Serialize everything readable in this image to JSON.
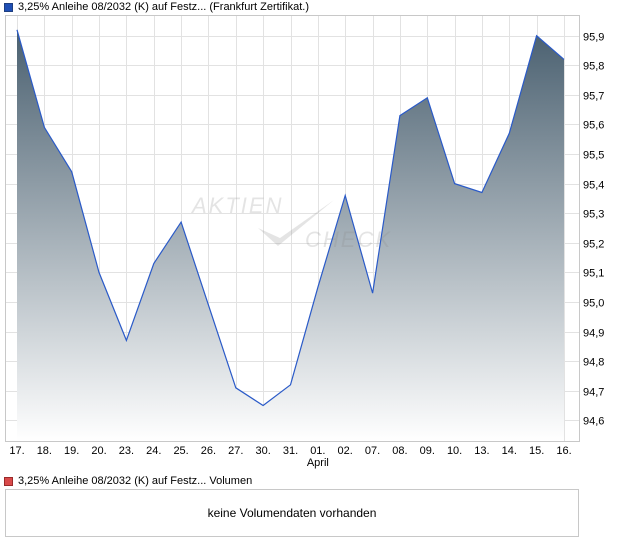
{
  "chart_data": {
    "type": "area",
    "title": "3,25% Anleihe 08/2032 (K) auf Festz... (Frankfurt Zertifikat.)",
    "x": [
      "17.",
      "18.",
      "19.",
      "20.",
      "23.",
      "24.",
      "25.",
      "26.",
      "27.",
      "30.",
      "31.",
      "01.",
      "02.",
      "07.",
      "08.",
      "09.",
      "10.",
      "13.",
      "14.",
      "15.",
      "16."
    ],
    "x_sublabels": {
      "01.": "April"
    },
    "series": [
      {
        "name": "3,25% Anleihe 08/2032 (K) auf Festz... (Frankfurt Zertifikat.)",
        "values": [
          95.92,
          95.59,
          95.44,
          95.1,
          94.87,
          95.13,
          95.27,
          94.99,
          94.71,
          94.65,
          94.72,
          95.05,
          95.36,
          95.03,
          95.63,
          95.69,
          95.4,
          95.37,
          95.57,
          95.9,
          95.82
        ]
      }
    ],
    "ylim": [
      94.53,
      95.97
    ],
    "yticks": [
      "94,6",
      "94,7",
      "94,8",
      "94,9",
      "95,0",
      "95,1",
      "95,2",
      "95,3",
      "95,4",
      "95,5",
      "95,6",
      "95,7",
      "95,8",
      "95,9"
    ],
    "ytick_values": [
      94.6,
      94.7,
      94.8,
      94.9,
      95.0,
      95.1,
      95.2,
      95.3,
      95.4,
      95.5,
      95.6,
      95.7,
      95.8,
      95.9
    ],
    "grid": true,
    "line_color": "#2a5ac8",
    "fill_top_color": "#4a6070",
    "fill_bottom_color": "#ffffff"
  },
  "volume": {
    "legend": "3,25% Anleihe 08/2032 (K) auf Festz... Volumen",
    "message": "keine Volumendaten vorhanden",
    "color": "#d94a4a"
  },
  "watermark": {
    "line1": "AKTIEN",
    "line2": "CHECK"
  }
}
